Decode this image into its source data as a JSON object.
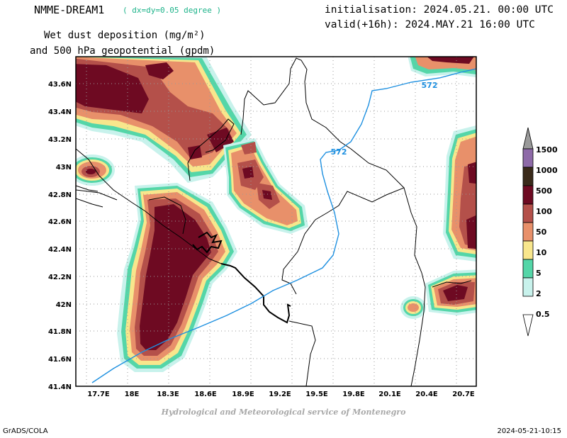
{
  "header": {
    "model": "NMME-DREAM1",
    "resolution": "( dx=dy=0.05 degree )",
    "title_line1": "Wet dust deposition (mg/m²)",
    "title_line2": "and 500 hPa geopotential (gpdm)",
    "initialisation": "initialisation: 2024.05.21. 00:00 UTC",
    "valid": "valid(+16h): 2024.MAY.21 16:00 UTC"
  },
  "map": {
    "lat_labels": [
      "43.6N",
      "43.4N",
      "43.2N",
      "43N",
      "42.8N",
      "42.6N",
      "42.4N",
      "42.2N",
      "42N",
      "41.8N",
      "41.6N",
      "41.4N"
    ],
    "lon_labels": [
      "17.7E",
      "18E",
      "18.3E",
      "18.6E",
      "18.9E",
      "19.2E",
      "19.5E",
      "19.8E",
      "20.1E",
      "20.4E",
      "20.7E"
    ],
    "contours": [
      {
        "label": "572",
        "color": "#1e90e0"
      },
      {
        "label": "572",
        "color": "#1e90e0"
      }
    ]
  },
  "colorbar": {
    "levels": [
      "1500",
      "1000",
      "500",
      "100",
      "50",
      "10",
      "5",
      "2",
      "0.5"
    ],
    "colors": [
      "#9a9a9a",
      "#8e6aa8",
      "#3a2a1a",
      "#6e0a22",
      "#b4504a",
      "#e8906a",
      "#f8e68c",
      "#54d6a8",
      "#c8f2ec",
      "#ffffff"
    ]
  },
  "footer": {
    "credit": "Hydrological and Meteorological service of Montenegro",
    "left": "GrADS/COLA",
    "right": "2024-05-21-10:15"
  }
}
